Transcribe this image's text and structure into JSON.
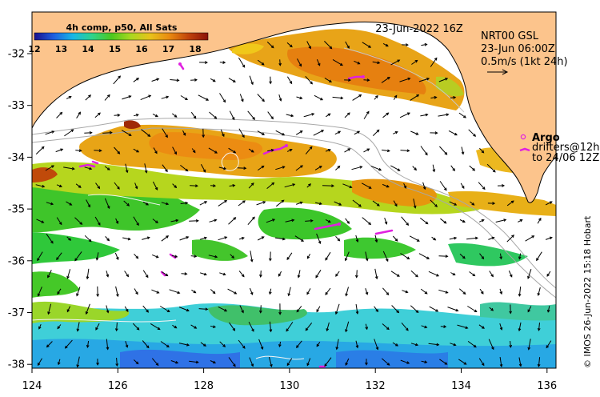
{
  "map": {
    "timestamp_title": "23-Jun-2022 16Z",
    "composite_label": "4h comp, p50, All Sats",
    "colorbar": {
      "ticks": [
        "12",
        "13",
        "14",
        "15",
        "16",
        "17",
        "18"
      ],
      "colors": [
        "#1a0f8c",
        "#1f5fe0",
        "#18b7e6",
        "#2fd38a",
        "#4bc81e",
        "#a9d820",
        "#e8c21a",
        "#e98a10",
        "#c0420a",
        "#8a1208"
      ]
    },
    "legend": {
      "line1": "NRT00 GSL",
      "line2": "23-Jun 06:00Z",
      "line3": "0.5m/s (1kt 24h)"
    },
    "argo": {
      "title": "Argo",
      "line1": "drifters@12h",
      "line2": "to 24/06 12Z",
      "marker_color": "#e020e0"
    },
    "credit": "© IMOS 26-Jun-2022 15:18 Hobart",
    "x_ticks": [
      "124",
      "126",
      "128",
      "130",
      "132",
      "134",
      "136"
    ],
    "y_ticks": [
      "-32",
      "-33",
      "-34",
      "-35",
      "-36",
      "-37",
      "-38"
    ],
    "land_color": "#fcc48c"
  }
}
